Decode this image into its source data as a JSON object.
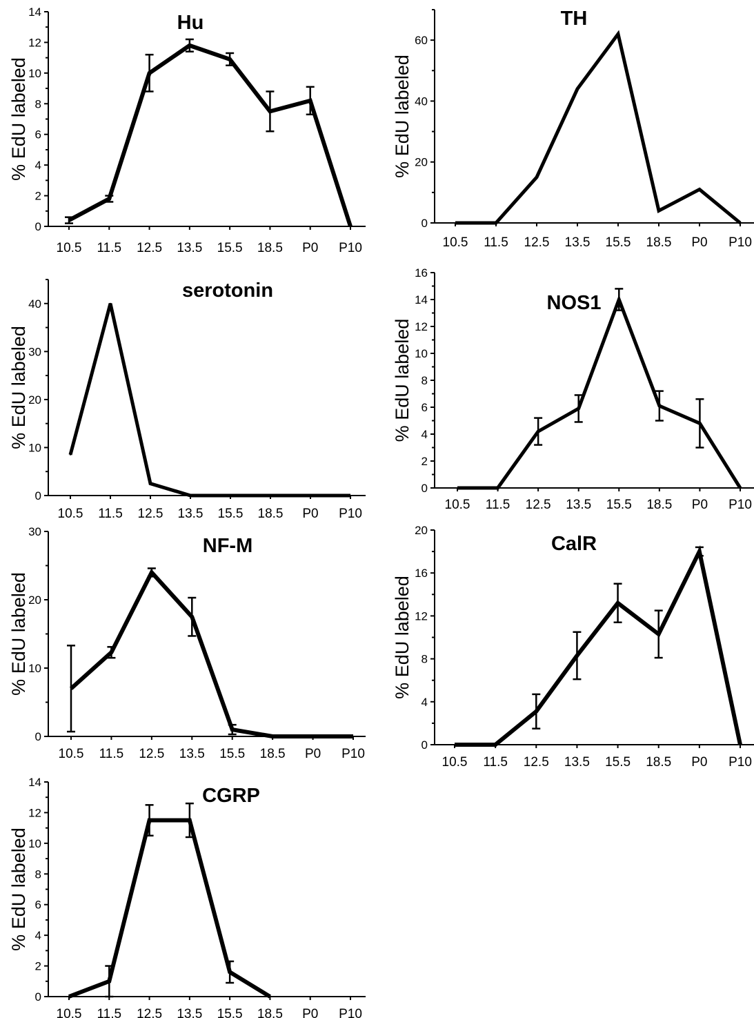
{
  "chart_data": [
    {
      "type": "line",
      "title": "Hu",
      "ylabel": "% EdU labeled",
      "xlabel": "",
      "categories": [
        "10.5",
        "11.5",
        "12.5",
        "13.5",
        "15.5",
        "18.5",
        "P0",
        "P10"
      ],
      "values": [
        0.4,
        1.8,
        10.0,
        11.8,
        10.9,
        7.5,
        8.2,
        0
      ],
      "errors": [
        0.2,
        0.2,
        1.2,
        0.4,
        0.4,
        1.3,
        0.9,
        null
      ],
      "ylim": [
        0,
        14
      ],
      "yticks": [
        "0",
        "2",
        "4",
        "6",
        "8",
        "10",
        "12",
        "14"
      ],
      "grid": false,
      "legend": "none"
    },
    {
      "type": "line",
      "title": "TH",
      "ylabel": "% EdU labeled",
      "xlabel": "",
      "categories": [
        "10.5",
        "11.5",
        "12.5",
        "13.5",
        "15.5",
        "18.5",
        "P0",
        "P10"
      ],
      "values": [
        0,
        0,
        15,
        44,
        62,
        4,
        11,
        0
      ],
      "errors": [],
      "ylim": [
        0,
        70
      ],
      "yticks": [
        "0",
        "20",
        "40",
        "60"
      ],
      "grid": false,
      "legend": "none"
    },
    {
      "type": "line",
      "title": "serotonin",
      "ylabel": "% EdU labeled",
      "xlabel": "",
      "categories": [
        "10.5",
        "11.5",
        "12.5",
        "13.5",
        "15.5",
        "18.5",
        "P0",
        "P10"
      ],
      "values": [
        8.5,
        40,
        2.5,
        0,
        0,
        0,
        0,
        0
      ],
      "errors": [],
      "ylim": [
        0,
        45
      ],
      "yticks": [
        "0",
        "10",
        "20",
        "30",
        "40"
      ],
      "grid": false,
      "legend": "none"
    },
    {
      "type": "line",
      "title": "NOS1",
      "ylabel": "% EdU labeled",
      "xlabel": "",
      "categories": [
        "10.5",
        "11.5",
        "12.5",
        "13.5",
        "15.5",
        "18.5",
        "P0",
        "P10"
      ],
      "values": [
        0,
        0,
        4.2,
        5.9,
        14.0,
        6.1,
        4.8,
        0
      ],
      "errors": [
        null,
        null,
        1.0,
        1.0,
        0.8,
        1.1,
        1.8,
        null
      ],
      "ylim": [
        0,
        16
      ],
      "yticks": [
        "0",
        "2",
        "4",
        "6",
        "8",
        "10",
        "12",
        "14",
        "16"
      ],
      "grid": false,
      "legend": "none"
    },
    {
      "type": "line",
      "title": "NF-M",
      "ylabel": "% EdU labeled",
      "xlabel": "",
      "categories": [
        "10.5",
        "11.5",
        "12.5",
        "13.5",
        "15.5",
        "18.5",
        "P0",
        "P10"
      ],
      "values": [
        7,
        12.3,
        24,
        17.5,
        1,
        0,
        0,
        0
      ],
      "errors": [
        6.3,
        0.8,
        0.6,
        2.8,
        0.7,
        null,
        null,
        null
      ],
      "ylim": [
        0,
        30
      ],
      "yticks": [
        "0",
        "10",
        "20",
        "30"
      ],
      "grid": false,
      "legend": "none"
    },
    {
      "type": "line",
      "title": "CalR",
      "ylabel": "% EdU labeled",
      "xlabel": "",
      "categories": [
        "10.5",
        "11.5",
        "12.5",
        "13.5",
        "15.5",
        "18.5",
        "P0",
        "P10"
      ],
      "values": [
        0,
        0,
        3.1,
        8.3,
        13.2,
        10.3,
        18.0,
        0
      ],
      "errors": [
        null,
        null,
        1.6,
        2.2,
        1.8,
        2.2,
        0.4,
        null
      ],
      "ylim": [
        0,
        20
      ],
      "yticks": [
        "0",
        "4",
        "8",
        "12",
        "16",
        "20"
      ],
      "grid": false,
      "legend": "none"
    },
    {
      "type": "line",
      "title": "CGRP",
      "ylabel": "% EdU labeled",
      "xlabel": "",
      "categories": [
        "10.5",
        "11.5",
        "12.5",
        "13.5",
        "15.5",
        "18.5",
        "P0",
        "P10"
      ],
      "values": [
        0,
        1.0,
        11.5,
        11.5,
        1.6,
        0,
        null,
        null
      ],
      "errors": [
        null,
        1.0,
        1.0,
        1.1,
        0.7,
        null,
        null,
        null
      ],
      "ylim": [
        0,
        14
      ],
      "yticks": [
        "0",
        "2",
        "4",
        "6",
        "8",
        "10",
        "12",
        "14"
      ],
      "grid": false,
      "legend": "none"
    }
  ]
}
